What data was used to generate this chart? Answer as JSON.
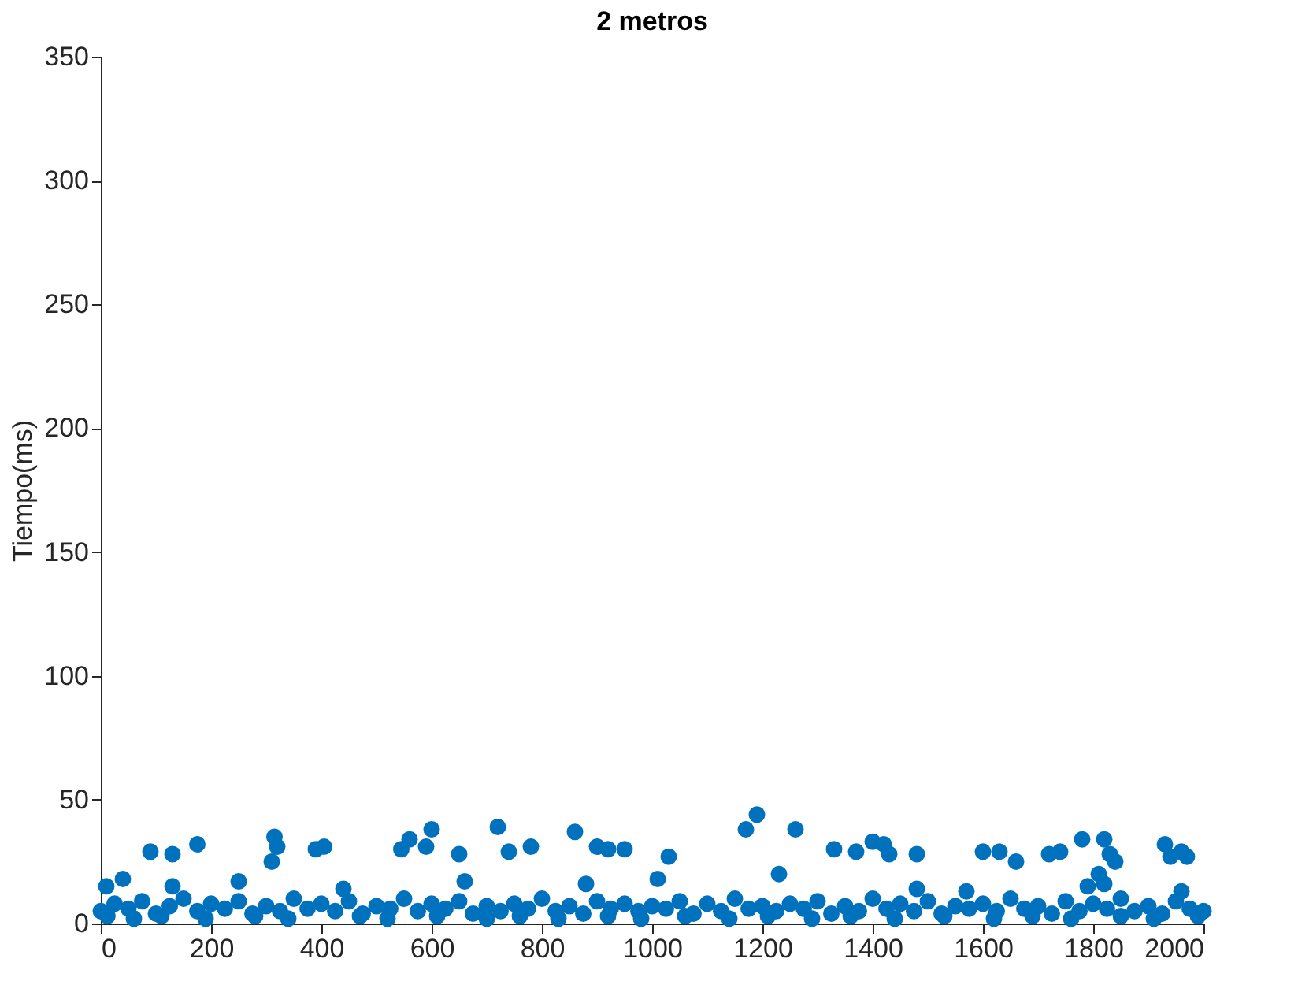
{
  "chart_data": {
    "type": "scatter",
    "title": "2 metros",
    "ylabel": "Tiempo(ms)",
    "x": [
      0,
      25,
      50,
      75,
      100,
      125,
      150,
      175,
      200,
      225,
      250,
      275,
      300,
      325,
      350,
      375,
      400,
      425,
      450,
      475,
      500,
      525,
      550,
      575,
      600,
      625,
      650,
      675,
      700,
      725,
      750,
      775,
      800,
      825,
      850,
      875,
      900,
      925,
      950,
      975,
      1000,
      1025,
      1050,
      1075,
      1100,
      1125,
      1150,
      1175,
      1200,
      1225,
      1250,
      1275,
      1300,
      1325,
      1350,
      1375,
      1400,
      1425,
      1450,
      1475,
      1500,
      1525,
      1550,
      1575,
      1600,
      1625,
      1650,
      1675,
      1700,
      1725,
      1750,
      1775,
      1800,
      1825,
      1850,
      1875,
      1900,
      1925,
      1950,
      1975,
      2000,
      10,
      40,
      130,
      250,
      440,
      660,
      880,
      1010,
      1480,
      1570,
      1790,
      1820,
      1960,
      12,
      60,
      110,
      190,
      280,
      340,
      470,
      520,
      610,
      700,
      760,
      830,
      920,
      980,
      1060,
      1140,
      1210,
      1290,
      1360,
      1440,
      1530,
      1620,
      1690,
      1760,
      1850,
      1910,
      1990,
      90,
      130,
      175,
      310,
      315,
      320,
      390,
      405,
      545,
      560,
      590,
      600,
      650,
      720,
      740,
      780,
      860,
      900,
      920,
      950,
      1030,
      1170,
      1190,
      1230,
      1260,
      1330,
      1370,
      1400,
      1420,
      1430,
      1480,
      1600,
      1630,
      1660,
      1720,
      1740,
      1780,
      1810,
      1820,
      1830,
      1840,
      1930,
      1940,
      1960,
      1970
    ],
    "values": [
      5,
      8,
      6,
      9,
      4,
      7,
      10,
      5,
      8,
      6,
      9,
      4,
      7,
      5,
      10,
      6,
      8,
      5,
      9,
      4,
      7,
      6,
      10,
      5,
      8,
      6,
      9,
      4,
      7,
      5,
      8,
      6,
      10,
      5,
      7,
      4,
      9,
      6,
      8,
      5,
      7,
      6,
      9,
      4,
      8,
      5,
      10,
      6,
      7,
      5,
      8,
      6,
      9,
      4,
      7,
      5,
      10,
      6,
      8,
      5,
      9,
      4,
      7,
      6,
      8,
      5,
      10,
      6,
      7,
      4,
      9,
      5,
      8,
      6,
      10,
      5,
      7,
      4,
      9,
      6,
      5,
      15,
      18,
      15,
      17,
      14,
      17,
      16,
      18,
      14,
      13,
      15,
      16,
      13,
      3,
      2,
      3,
      2,
      3,
      2,
      3,
      2,
      3,
      2,
      3,
      2,
      3,
      2,
      3,
      2,
      3,
      2,
      3,
      2,
      3,
      2,
      3,
      2,
      3,
      2,
      3,
      29,
      28,
      32,
      25,
      35,
      31,
      30,
      31,
      30,
      34,
      31,
      38,
      28,
      39,
      29,
      31,
      37,
      31,
      30,
      30,
      27,
      38,
      44,
      20,
      38,
      30,
      29,
      33,
      32,
      28,
      28,
      29,
      29,
      25,
      28,
      29,
      34,
      20,
      34,
      28,
      25,
      32,
      27,
      29,
      27
    ],
    "color": "#0072bd",
    "marker": "circle",
    "xlim": [
      0,
      2000
    ],
    "xticks": [
      0,
      200,
      400,
      600,
      800,
      1000,
      1200,
      1400,
      1600,
      1800,
      2000
    ],
    "ylim": [
      0,
      350
    ],
    "yticks": [
      0,
      50,
      100,
      150,
      200,
      250,
      300,
      350
    ],
    "grid": false
  }
}
